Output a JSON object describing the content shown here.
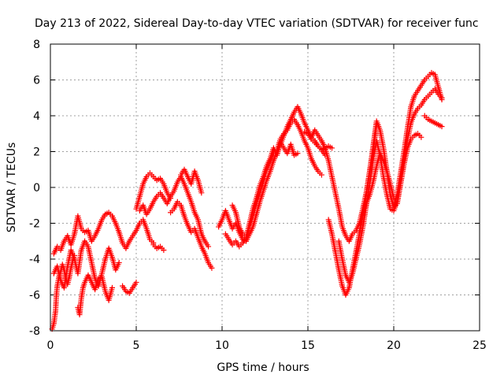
{
  "chart_data": {
    "type": "scatter",
    "title": "Day 213 of 2022, Sidereal Day-to-day VTEC variation (SDTVAR) for receiver func",
    "xlabel": "GPS time / hours",
    "ylabel": "SDTVAR / TECUs",
    "xlim": [
      0,
      25
    ],
    "ylim": [
      -8,
      8
    ],
    "x_ticks": [
      "0",
      "5",
      "10",
      "15",
      "20",
      "25"
    ],
    "y_ticks": [
      "-8",
      "-6",
      "-4",
      "-2",
      "0",
      "2",
      "4",
      "6",
      "8"
    ],
    "grid": true,
    "marker": "+",
    "color": "#ff0000",
    "series": [
      {
        "name": "s1",
        "x": [
          0.2,
          0.4,
          0.6,
          0.8,
          1.0,
          1.2,
          1.4,
          1.6,
          1.8,
          2.0,
          2.2,
          2.4,
          2.6,
          2.8,
          3.0,
          3.2,
          3.4,
          3.6,
          3.8,
          4.0,
          4.2,
          4.4,
          4.6,
          4.8,
          5.0,
          5.2,
          5.4,
          5.6,
          5.8,
          6.0
        ],
        "y": [
          -3.7,
          -3.3,
          -3.5,
          -3.0,
          -2.7,
          -3.2,
          -2.6,
          -1.6,
          -2.3,
          -2.5,
          -2.4,
          -3.0,
          -2.7,
          -2.3,
          -1.8,
          -1.5,
          -1.4,
          -1.6,
          -2.0,
          -2.5,
          -3.1,
          -3.4,
          -3.0,
          -2.7,
          -2.4,
          -2.0,
          -1.8,
          -2.3,
          -2.9,
          -3.1
        ]
      },
      {
        "name": "s2",
        "x": [
          0.2,
          0.4,
          0.6,
          0.8,
          1.0,
          1.2,
          1.4,
          1.6,
          1.8,
          2.0,
          2.2,
          2.4,
          2.6,
          2.8,
          3.0,
          3.2,
          3.4,
          3.6,
          3.8,
          4.0
        ],
        "y": [
          -4.8,
          -4.4,
          -5.2,
          -5.6,
          -4.4,
          -3.5,
          -4.0,
          -4.8,
          -3.5,
          -3.0,
          -3.3,
          -4.2,
          -5.1,
          -5.5,
          -4.8,
          -4.0,
          -3.4,
          -3.9,
          -4.6,
          -4.2
        ]
      },
      {
        "name": "s3",
        "x": [
          0.1,
          0.2,
          0.3,
          0.35,
          0.4,
          0.5,
          0.6,
          0.7,
          0.8,
          0.9,
          1.0,
          1.1,
          1.2,
          1.3,
          1.4
        ],
        "y": [
          -7.9,
          -7.6,
          -6.9,
          -6.0,
          -5.5,
          -5.0,
          -4.7,
          -4.3,
          -4.6,
          -5.1,
          -5.4,
          -5.0,
          -4.5,
          -4.1,
          -3.8
        ]
      },
      {
        "name": "s4",
        "x": [
          1.6,
          1.7,
          1.8,
          1.9,
          2.0,
          2.2,
          2.4,
          2.6,
          2.8,
          3.0,
          3.2,
          3.4,
          3.6
        ],
        "y": [
          -6.7,
          -7.1,
          -6.2,
          -5.6,
          -5.3,
          -4.9,
          -5.3,
          -5.7,
          -5.1,
          -5.0,
          -5.8,
          -6.3,
          -5.6
        ]
      },
      {
        "name": "s5",
        "x": [
          4.2,
          4.4,
          4.6,
          4.8,
          5.0
        ],
        "y": [
          -5.5,
          -5.8,
          -5.9,
          -5.6,
          -5.3
        ]
      },
      {
        "name": "s6",
        "x": [
          5.0,
          5.2,
          5.4,
          5.6,
          5.8,
          6.0,
          6.2,
          6.4,
          6.6,
          6.8,
          7.0
        ],
        "y": [
          -1.2,
          -0.5,
          0.2,
          0.6,
          0.8,
          0.6,
          0.4,
          0.5,
          0.2,
          -0.3,
          -0.6
        ]
      },
      {
        "name": "s7",
        "x": [
          5.2,
          5.4,
          5.6,
          5.8,
          6.0,
          6.2,
          6.4,
          6.6,
          6.8,
          7.0,
          7.2,
          7.4,
          7.6,
          7.8,
          8.0,
          8.2,
          8.4,
          8.6,
          8.8,
          9.0,
          9.2
        ],
        "y": [
          -1.3,
          -1.0,
          -1.5,
          -1.2,
          -0.8,
          -0.5,
          -0.3,
          -0.6,
          -0.9,
          -0.5,
          -0.2,
          0.3,
          0.6,
          0.2,
          -0.3,
          -0.8,
          -1.4,
          -1.8,
          -2.6,
          -3.0,
          -3.3
        ]
      },
      {
        "name": "s8",
        "x": [
          7.0,
          7.2,
          7.4,
          7.6,
          7.8,
          8.0,
          8.2,
          8.4,
          8.6,
          8.8,
          9.0,
          9.2,
          9.4
        ],
        "y": [
          -1.4,
          -1.2,
          -0.8,
          -1.0,
          -1.6,
          -2.1,
          -2.5,
          -2.3,
          -2.8,
          -3.3,
          -3.7,
          -4.2,
          -4.5
        ]
      },
      {
        "name": "s9",
        "x": [
          6.0,
          6.2,
          6.4,
          6.6
        ],
        "y": [
          -3.2,
          -3.4,
          -3.3,
          -3.5
        ]
      },
      {
        "name": "s10",
        "x": [
          7.6,
          7.8,
          8.0,
          8.2,
          8.4,
          8.6,
          8.8
        ],
        "y": [
          0.7,
          1.0,
          0.6,
          0.2,
          0.9,
          0.4,
          -0.3
        ]
      },
      {
        "name": "s11",
        "x": [
          9.8,
          10.0,
          10.2,
          10.4,
          10.6,
          10.8,
          11.0,
          11.2,
          11.4,
          11.6,
          11.8,
          12.0,
          12.2,
          12.4,
          12.6,
          12.8,
          13.0,
          13.2,
          13.4,
          13.6,
          13.8,
          14.0,
          14.2,
          14.4,
          14.6,
          14.8,
          15.0,
          15.2,
          15.4,
          15.6,
          15.8,
          16.0
        ],
        "y": [
          -2.2,
          -1.8,
          -1.3,
          -1.8,
          -2.3,
          -2.0,
          -2.5,
          -2.9,
          -3.0,
          -2.6,
          -2.2,
          -1.5,
          -0.8,
          -0.2,
          0.4,
          0.9,
          1.5,
          2.0,
          2.4,
          2.9,
          3.4,
          3.8,
          4.2,
          4.5,
          4.1,
          3.6,
          3.2,
          2.8,
          2.6,
          2.3,
          2.1,
          1.8
        ]
      },
      {
        "name": "s12",
        "x": [
          10.2,
          10.4,
          10.6,
          10.8,
          11.0,
          11.2,
          11.4,
          11.6,
          11.8,
          12.0,
          12.2,
          12.4,
          12.6,
          12.8,
          13.0,
          13.2,
          13.4,
          13.6,
          13.8,
          14.0,
          14.2,
          14.4,
          14.6,
          14.8,
          15.0,
          15.2,
          15.4,
          15.6,
          15.8
        ],
        "y": [
          -2.6,
          -2.9,
          -3.2,
          -3.0,
          -3.3,
          -3.1,
          -2.8,
          -2.2,
          -1.6,
          -0.9,
          -0.3,
          0.3,
          1.0,
          1.4,
          1.9,
          2.1,
          2.7,
          3.0,
          3.2,
          3.6,
          3.8,
          3.5,
          3.1,
          2.6,
          2.2,
          1.6,
          1.2,
          0.9,
          0.7
        ]
      },
      {
        "name": "s13",
        "x": [
          10.6,
          10.8,
          11.0,
          11.2,
          11.4,
          11.6,
          11.8,
          12.0,
          12.2,
          12.4,
          12.6,
          12.8,
          13.0,
          13.2,
          13.4,
          13.6,
          13.8,
          14.0,
          14.2,
          14.4
        ],
        "y": [
          -1.0,
          -1.4,
          -2.2,
          -2.6,
          -2.8,
          -2.0,
          -1.2,
          -0.6,
          0.1,
          0.6,
          1.2,
          1.6,
          2.2,
          1.8,
          2.5,
          2.2,
          1.9,
          2.4,
          1.8,
          1.9
        ]
      },
      {
        "name": "s14",
        "x": [
          15.0,
          15.2,
          15.4,
          15.6,
          15.8,
          16.0,
          16.2,
          16.4,
          16.6,
          16.8,
          17.0,
          17.2,
          17.4,
          17.6,
          17.8,
          18.0,
          18.2,
          18.4,
          18.6,
          18.8,
          19.0
        ],
        "y": [
          3.0,
          2.8,
          3.2,
          2.9,
          2.6,
          2.2,
          1.5,
          0.6,
          -0.3,
          -1.2,
          -2.2,
          -2.7,
          -3.0,
          -2.6,
          -2.4,
          -2.0,
          -1.2,
          -0.3,
          0.9,
          2.0,
          3.5
        ]
      },
      {
        "name": "s15",
        "x": [
          16.2,
          16.4,
          16.6,
          16.8,
          17.0,
          17.2,
          17.4,
          17.6,
          17.8,
          18.0,
          18.2,
          18.4,
          18.6,
          18.8,
          19.0,
          19.2,
          19.4,
          19.6,
          19.8,
          20.0,
          20.2,
          20.4,
          20.6,
          20.8,
          21.0,
          21.2,
          21.4,
          21.6,
          21.8,
          22.0,
          22.2,
          22.4,
          22.6,
          22.8
        ],
        "y": [
          -1.8,
          -2.6,
          -3.6,
          -4.6,
          -5.5,
          -6.0,
          -5.6,
          -4.6,
          -3.6,
          -2.6,
          -1.6,
          -0.4,
          0.9,
          2.3,
          3.7,
          3.2,
          2.2,
          0.9,
          -0.4,
          -1.1,
          -0.4,
          0.8,
          2.0,
          3.3,
          4.5,
          5.1,
          5.4,
          5.7,
          6.0,
          6.2,
          6.4,
          6.3,
          5.6,
          4.9
        ]
      },
      {
        "name": "s16",
        "x": [
          16.8,
          17.0,
          17.2,
          17.4,
          17.6,
          17.8,
          18.0,
          18.2,
          18.4,
          18.6,
          18.8,
          19.0,
          19.2,
          19.4,
          19.6,
          19.8,
          20.0,
          20.2,
          20.4,
          20.6,
          20.8,
          21.0,
          21.2,
          21.4,
          21.6,
          21.8,
          22.0,
          22.2,
          22.4,
          22.6,
          22.8
        ],
        "y": [
          -3.0,
          -4.0,
          -4.9,
          -5.3,
          -4.8,
          -4.0,
          -3.2,
          -2.2,
          -1.0,
          0.2,
          1.6,
          2.6,
          1.8,
          0.6,
          -0.4,
          -1.2,
          -1.3,
          -0.8,
          0.4,
          1.6,
          2.7,
          3.6,
          4.1,
          4.4,
          4.6,
          4.9,
          5.1,
          5.3,
          5.5,
          5.2,
          5.0
        ]
      },
      {
        "name": "s17",
        "x": [
          18.0,
          18.2,
          18.4,
          18.6,
          18.8,
          19.0,
          19.2,
          19.4,
          19.6,
          19.8,
          20.0,
          20.2,
          20.4,
          20.6,
          20.8,
          21.0,
          21.2,
          21.4,
          21.6
        ],
        "y": [
          -2.5,
          -1.5,
          -0.9,
          -0.4,
          0.3,
          1.2,
          1.9,
          1.5,
          0.9,
          0.2,
          -0.6,
          -0.9,
          0.2,
          1.3,
          2.2,
          2.7,
          2.9,
          3.0,
          2.8
        ]
      },
      {
        "name": "s18",
        "x": [
          21.8,
          22.0,
          22.2,
          22.4,
          22.6,
          22.8
        ],
        "y": [
          4.0,
          3.8,
          3.7,
          3.6,
          3.5,
          3.4
        ]
      },
      {
        "name": "s19",
        "x": [
          14.8,
          15.0,
          15.2,
          15.4,
          15.6,
          15.8,
          16.0,
          16.2,
          16.4
        ],
        "y": [
          3.1,
          3.0,
          2.7,
          2.5,
          2.3,
          2.1,
          2.2,
          2.3,
          2.2
        ]
      }
    ]
  }
}
